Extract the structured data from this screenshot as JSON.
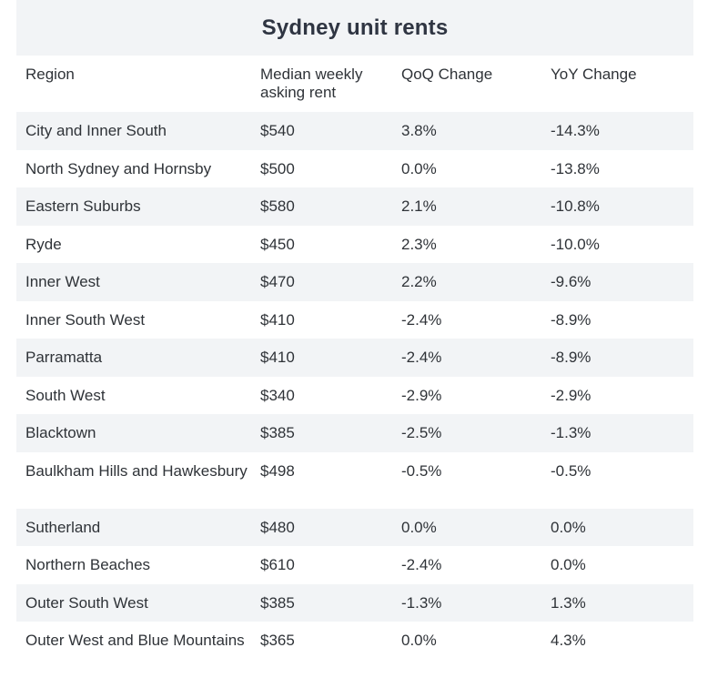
{
  "title": "Sydney unit rents",
  "columns": [
    "Region",
    "Median weekly asking rent",
    "QoQ Change",
    "YoY Change"
  ],
  "rows": [
    [
      "City and Inner South",
      "$540",
      "3.8%",
      "-14.3%"
    ],
    [
      "North Sydney and Hornsby",
      "$500",
      "0.0%",
      "-13.8%"
    ],
    [
      "Eastern Suburbs",
      "$580",
      "2.1%",
      "-10.8%"
    ],
    [
      "Ryde",
      "$450",
      "2.3%",
      "-10.0%"
    ],
    [
      "Inner West",
      "$470",
      "2.2%",
      "-9.6%"
    ],
    [
      "Inner South West",
      "$410",
      "-2.4%",
      "-8.9%"
    ],
    [
      "Parramatta",
      "$410",
      "-2.4%",
      "-8.9%"
    ],
    [
      "South West",
      "$340",
      "-2.9%",
      "-2.9%"
    ],
    [
      "Blacktown",
      "$385",
      "-2.5%",
      "-1.3%"
    ],
    [
      "Baulkham Hills and Hawkesbury",
      "$498",
      "-0.5%",
      "-0.5%"
    ],
    [
      "Sutherland",
      "$480",
      "0.0%",
      "0.0%"
    ],
    [
      "Northern Beaches",
      "$610",
      "-2.4%",
      "0.0%"
    ],
    [
      "Outer South West",
      "$385",
      "-1.3%",
      "1.3%"
    ],
    [
      "Outer West and Blue Mountains",
      "$365",
      "0.0%",
      "4.3%"
    ]
  ]
}
